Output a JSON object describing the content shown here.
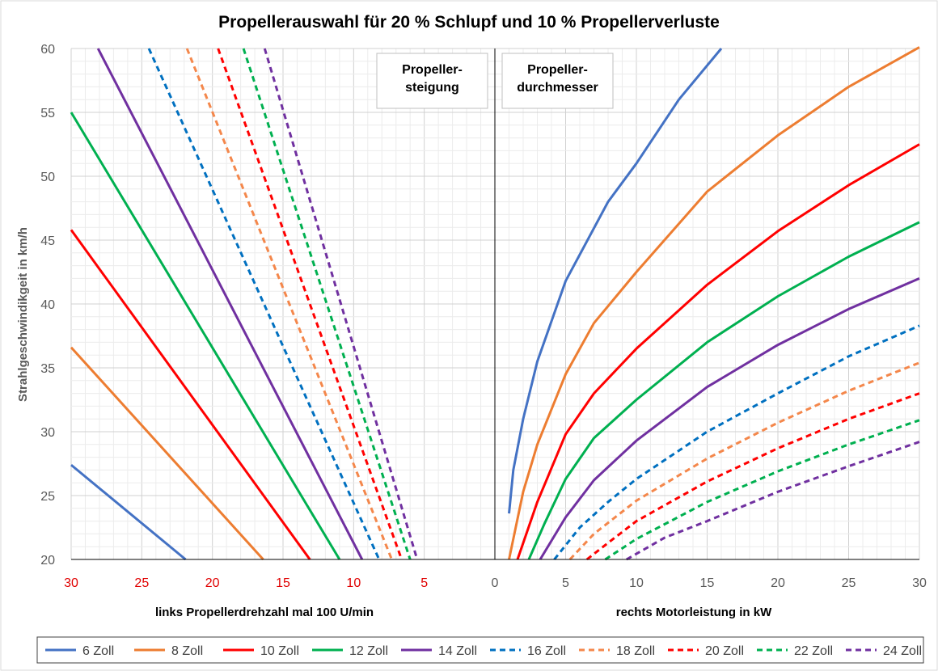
{
  "chart_data": {
    "type": "line",
    "title": "Propellerauswahl für 20 % Schlupf und 10 % Propellerverluste",
    "ylabel": "Strahlgeschwindikgeit  in km/h",
    "xlabel_left": "links Propellerdrehzahl  mal 100 U/min",
    "xlabel_right": "rechts Motorleistung  in kW",
    "ylim": [
      20,
      60
    ],
    "yticks": [
      "20",
      "25",
      "30",
      "35",
      "40",
      "45",
      "50",
      "55",
      "60"
    ],
    "xlim_left": [
      30,
      0
    ],
    "xlim_right": [
      0,
      30
    ],
    "xticks_left": [
      "30",
      "25",
      "20",
      "15",
      "10",
      "5"
    ],
    "xtick_zero": "0",
    "xticks_right": [
      "5",
      "10",
      "15",
      "20",
      "25",
      "30"
    ],
    "grid": true,
    "legend_position": "bottom",
    "annotations": [
      {
        "lines": [
          "Propeller-",
          "steigung"
        ]
      },
      {
        "lines": [
          "Propeller-",
          "durchmesser"
        ]
      }
    ],
    "series": [
      {
        "name": "6 Zoll",
        "color": "#4472c4",
        "dashed": false,
        "left_points": [
          [
            30,
            27.4
          ],
          [
            21.9,
            20
          ]
        ],
        "right_points": [
          [
            1.0,
            23.6
          ],
          [
            1.3,
            27
          ],
          [
            2,
            31
          ],
          [
            3,
            35.5
          ],
          [
            5,
            41.8
          ],
          [
            8,
            48
          ],
          [
            10,
            51
          ],
          [
            13,
            56
          ],
          [
            16,
            60
          ]
        ]
      },
      {
        "name": "8 Zoll",
        "color": "#ed7d31",
        "dashed": false,
        "left_points": [
          [
            30,
            36.6
          ],
          [
            16.4,
            20
          ]
        ],
        "right_points": [
          [
            1.0,
            20
          ],
          [
            2,
            25.3
          ],
          [
            3,
            29
          ],
          [
            5,
            34.5
          ],
          [
            7,
            38.5
          ],
          [
            10,
            42.5
          ],
          [
            15,
            48.8
          ],
          [
            20,
            53.2
          ],
          [
            25,
            57
          ],
          [
            30,
            60.1
          ]
        ]
      },
      {
        "name": "10 Zoll",
        "color": "#ff0000",
        "dashed": false,
        "left_points": [
          [
            30,
            45.8
          ],
          [
            13.1,
            20
          ]
        ],
        "right_points": [
          [
            1.6,
            20
          ],
          [
            3,
            24.5
          ],
          [
            5,
            29.8
          ],
          [
            7,
            33
          ],
          [
            10,
            36.5
          ],
          [
            15,
            41.5
          ],
          [
            20,
            45.7
          ],
          [
            25,
            49.3
          ],
          [
            30,
            52.5
          ]
        ]
      },
      {
        "name": "12 Zoll",
        "color": "#00b050",
        "dashed": false,
        "left_points": [
          [
            30,
            55
          ],
          [
            11,
            20
          ]
        ],
        "right_points": [
          [
            2.4,
            20
          ],
          [
            3.5,
            22.8
          ],
          [
            5,
            26.3
          ],
          [
            7,
            29.5
          ],
          [
            10,
            32.5
          ],
          [
            15,
            37
          ],
          [
            20,
            40.6
          ],
          [
            25,
            43.7
          ],
          [
            30,
            46.4
          ]
        ]
      },
      {
        "name": "14 Zoll",
        "color": "#7030a0",
        "dashed": false,
        "left_points": [
          [
            28.1,
            60
          ],
          [
            9.4,
            20
          ]
        ],
        "right_points": [
          [
            3.2,
            20
          ],
          [
            5,
            23.3
          ],
          [
            7,
            26.2
          ],
          [
            10,
            29.3
          ],
          [
            15,
            33.5
          ],
          [
            20,
            36.8
          ],
          [
            25,
            39.6
          ],
          [
            30,
            42
          ]
        ]
      },
      {
        "name": "16 Zoll",
        "color": "#0070c0",
        "dashed": true,
        "left_points": [
          [
            24.5,
            60
          ],
          [
            8.2,
            20
          ]
        ],
        "right_points": [
          [
            4.2,
            20
          ],
          [
            6,
            22.5
          ],
          [
            8,
            24.5
          ],
          [
            10,
            26.3
          ],
          [
            15,
            30
          ],
          [
            20,
            33
          ],
          [
            25,
            35.9
          ],
          [
            30,
            38.3
          ]
        ]
      },
      {
        "name": "18 Zoll",
        "color": "#f4874b",
        "dashed": true,
        "left_points": [
          [
            21.8,
            60
          ],
          [
            7.3,
            20
          ]
        ],
        "right_points": [
          [
            5.3,
            20
          ],
          [
            7,
            22
          ],
          [
            10,
            24.6
          ],
          [
            15,
            27.9
          ],
          [
            20,
            30.7
          ],
          [
            25,
            33.2
          ],
          [
            30,
            35.4
          ]
        ]
      },
      {
        "name": "20 Zoll",
        "color": "#ff0000",
        "dashed": true,
        "left_points": [
          [
            19.6,
            60
          ],
          [
            6.6,
            20
          ]
        ],
        "right_points": [
          [
            6.5,
            20
          ],
          [
            8,
            21.3
          ],
          [
            10,
            23
          ],
          [
            15,
            26.1
          ],
          [
            20,
            28.7
          ],
          [
            25,
            31
          ],
          [
            30,
            33
          ]
        ]
      },
      {
        "name": "22 Zoll",
        "color": "#00b050",
        "dashed": true,
        "left_points": [
          [
            17.8,
            60
          ],
          [
            6,
            20
          ]
        ],
        "right_points": [
          [
            7.8,
            20
          ],
          [
            10,
            21.6
          ],
          [
            15,
            24.5
          ],
          [
            20,
            26.9
          ],
          [
            25,
            29
          ],
          [
            30,
            30.9
          ]
        ]
      },
      {
        "name": "24 Zoll",
        "color": "#7030a0",
        "dashed": true,
        "left_points": [
          [
            16.3,
            60
          ],
          [
            5.5,
            20
          ]
        ],
        "right_points": [
          [
            9.3,
            20
          ],
          [
            12,
            21.7
          ],
          [
            15,
            23
          ],
          [
            20,
            25.3
          ],
          [
            25,
            27.3
          ],
          [
            30,
            29.2
          ]
        ]
      }
    ]
  }
}
